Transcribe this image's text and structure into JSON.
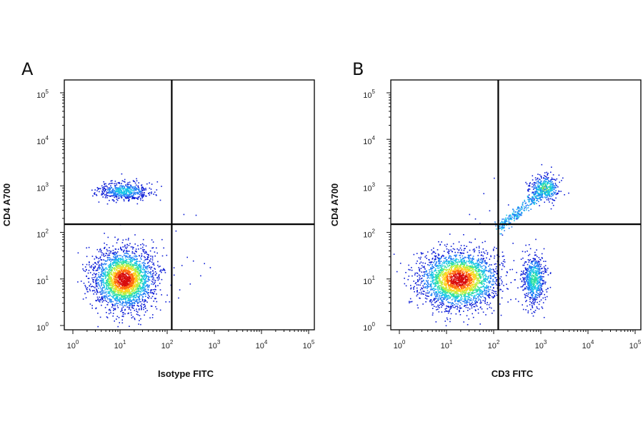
{
  "chart_data": [
    {
      "type": "scatter",
      "subtype": "flow-cytometry density dot plot",
      "panel": "A",
      "xlabel": "Isotype FITC",
      "ylabel": "CD4 A700",
      "xscale": "log",
      "yscale": "log",
      "xlim": [
        1,
        100000
      ],
      "ylim": [
        1,
        100000
      ],
      "x_ticks": [
        {
          "base": "10",
          "exp": "0"
        },
        {
          "base": "10",
          "exp": "1"
        },
        {
          "base": "10",
          "exp": "2"
        },
        {
          "base": "10",
          "exp": "3"
        },
        {
          "base": "10",
          "exp": "4"
        },
        {
          "base": "10",
          "exp": "5"
        }
      ],
      "y_ticks": [
        {
          "base": "10",
          "exp": "0"
        },
        {
          "base": "10",
          "exp": "1"
        },
        {
          "base": "10",
          "exp": "2"
        },
        {
          "base": "10",
          "exp": "3"
        },
        {
          "base": "10",
          "exp": "4"
        },
        {
          "base": "10",
          "exp": "5"
        }
      ],
      "quadrant_gate": {
        "x": 125,
        "y": 150
      },
      "colormap": [
        "#0a1bd6",
        "#1f7cf5",
        "#19c4e8",
        "#2ee0a0",
        "#b8f03c",
        "#ffd21f",
        "#ff6a10",
        "#d80d0d"
      ],
      "populations": [
        {
          "center": [
            12,
            10
          ],
          "spread": [
            0.32,
            0.32
          ],
          "density": 1.0,
          "count": 2600
        },
        {
          "center": [
            12,
            800
          ],
          "spread": [
            0.28,
            0.1
          ],
          "density": 0.35,
          "count": 520
        }
      ],
      "sparse_points": [
        [
          350,
          25
        ],
        [
          200,
          20
        ],
        [
          180,
          6
        ],
        [
          300,
          8
        ],
        [
          600,
          22
        ],
        [
          220,
          250
        ],
        [
          400,
          240
        ],
        [
          150,
          110
        ],
        [
          260,
          30
        ],
        [
          500,
          12
        ],
        [
          800,
          18
        ],
        [
          170,
          4
        ]
      ]
    },
    {
      "type": "scatter",
      "subtype": "flow-cytometry density dot plot",
      "panel": "B",
      "xlabel": "CD3 FITC",
      "ylabel": "CD4 A700",
      "xscale": "log",
      "yscale": "log",
      "xlim": [
        1,
        100000
      ],
      "ylim": [
        1,
        100000
      ],
      "x_ticks": [
        {
          "base": "10",
          "exp": "0"
        },
        {
          "base": "10",
          "exp": "1"
        },
        {
          "base": "10",
          "exp": "2"
        },
        {
          "base": "10",
          "exp": "3"
        },
        {
          "base": "10",
          "exp": "4"
        },
        {
          "base": "10",
          "exp": "5"
        }
      ],
      "y_ticks": [
        {
          "base": "10",
          "exp": "0"
        },
        {
          "base": "10",
          "exp": "1"
        },
        {
          "base": "10",
          "exp": "2"
        },
        {
          "base": "10",
          "exp": "3"
        },
        {
          "base": "10",
          "exp": "4"
        },
        {
          "base": "10",
          "exp": "5"
        }
      ],
      "quadrant_gate": {
        "x": 125,
        "y": 150
      },
      "colormap": [
        "#0a1bd6",
        "#1f7cf5",
        "#19c4e8",
        "#2ee0a0",
        "#b8f03c",
        "#ffd21f",
        "#ff6a10",
        "#d80d0d"
      ],
      "populations": [
        {
          "center": [
            18,
            10
          ],
          "spread": [
            0.42,
            0.3
          ],
          "density": 1.0,
          "count": 2600
        },
        {
          "center": [
            700,
            10
          ],
          "spread": [
            0.12,
            0.28
          ],
          "density": 0.45,
          "count": 650
        },
        {
          "center": [
            1200,
            900
          ],
          "spread": [
            0.16,
            0.14
          ],
          "density": 0.55,
          "count": 380
        }
      ],
      "diagonal_band": {
        "from": [
          120,
          120
        ],
        "to": [
          1400,
          1000
        ],
        "count": 320
      },
      "sparse_points": [
        [
          80,
          300
        ],
        [
          40,
          200
        ],
        [
          120,
          500
        ],
        [
          60,
          700
        ],
        [
          200,
          400
        ],
        [
          30,
          250
        ],
        [
          100,
          1500
        ],
        [
          300,
          200
        ],
        [
          50,
          160
        ],
        [
          150,
          90
        ],
        [
          250,
          60
        ],
        [
          400,
          40
        ]
      ]
    }
  ]
}
